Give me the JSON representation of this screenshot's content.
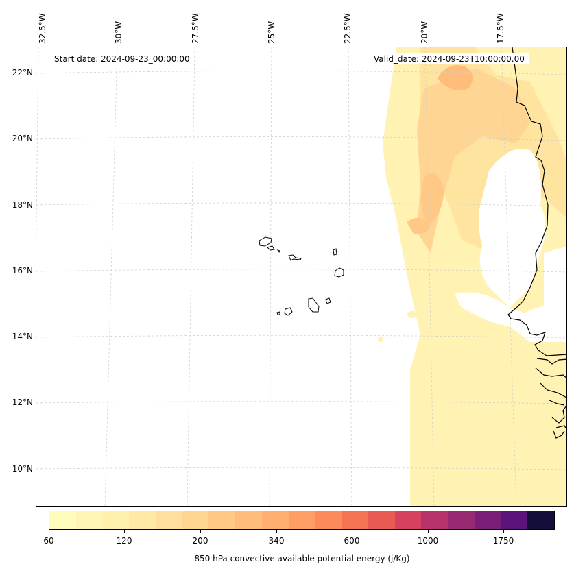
{
  "map": {
    "start_label": "Start date: 2024-09-23_00:00:00",
    "valid_label": "Valid_date: 2024-09-23T10:00:00.00",
    "lon_labels": [
      "32.5°W",
      "30°W",
      "27.5°W",
      "25°W",
      "22.5°W",
      "20°W",
      "17.5°W"
    ],
    "lat_labels": [
      "22°N",
      "20°N",
      "18°N",
      "16°N",
      "14°N",
      "12°N",
      "10°N"
    ],
    "gridlines": true,
    "features": [
      "cape-verde-islands",
      "west-africa-coastline"
    ]
  },
  "colorbar": {
    "label": "850 hPa convective available potential energy (j/Kg)",
    "tick_labels": [
      "60",
      "120",
      "200",
      "340",
      "600",
      "1000",
      "1750"
    ],
    "colors": [
      "#fffcbc",
      "#fff6b6",
      "#fff0ad",
      "#ffe9a5",
      "#ffdf9c",
      "#ffd592",
      "#ffc985",
      "#ffbc7a",
      "#ffaf6f",
      "#ff9e64",
      "#fb8b5b",
      "#f57353",
      "#e95a54",
      "#d5415e",
      "#b8336b",
      "#982a74",
      "#791f7a",
      "#5c147d",
      "#140f3a"
    ]
  }
}
